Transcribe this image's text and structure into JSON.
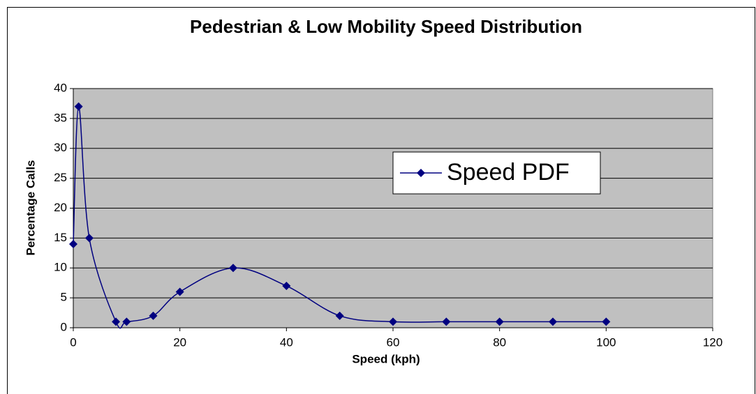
{
  "chart_data": {
    "type": "line",
    "title": "Pedestrian & Low Mobility Speed Distribution",
    "x_label": "Speed (kph)",
    "y_label": "Percentage Calls",
    "x": [
      0,
      1,
      3,
      8,
      10,
      15,
      20,
      30,
      40,
      50,
      60,
      70,
      80,
      90,
      100
    ],
    "series": [
      {
        "name": "Speed PDF",
        "color": "#000080",
        "values": [
          14,
          37,
          15,
          1,
          1,
          2,
          6,
          10,
          7,
          2,
          1,
          1,
          1,
          1,
          1
        ]
      }
    ],
    "xlim": [
      0,
      120
    ],
    "xticks": [
      0,
      20,
      40,
      60,
      80,
      100,
      120
    ],
    "ylim": [
      0,
      40
    ],
    "yticks": [
      0,
      5,
      10,
      15,
      20,
      25,
      30,
      35,
      40
    ],
    "grid": true,
    "smooth": true,
    "marker": "diamond",
    "plot_background": "#c0c0c0"
  }
}
